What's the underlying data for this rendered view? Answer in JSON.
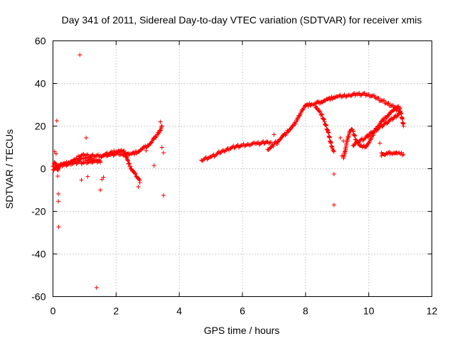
{
  "chart_data": {
    "type": "scatter",
    "title": "Day 341 of 2011, Sidereal Day-to-day VTEC variation (SDTVAR) for receiver xmis",
    "xlabel": "GPS time / hours",
    "ylabel": "SDTVAR / TECUs",
    "xlim": [
      0,
      12
    ],
    "ylim": [
      -60,
      60
    ],
    "xticks": [
      "0",
      "2",
      "4",
      "6",
      "8",
      "10",
      "12"
    ],
    "yticks": [
      "-60",
      "-40",
      "-20",
      "0",
      "20",
      "40",
      "60"
    ],
    "grid": true,
    "marker": "+",
    "color": "#ff0000",
    "series": [
      {
        "name": "SDTVAR",
        "tracks": [
          [
            [
              0.0,
              1.0
            ],
            [
              0.05,
              3.0
            ],
            [
              0.1,
              1.5
            ],
            [
              0.15,
              -0.5
            ],
            [
              0.2,
              1.2
            ],
            [
              0.3,
              2.0
            ],
            [
              0.4,
              2.5
            ],
            [
              0.5,
              3.0
            ],
            [
              0.6,
              3.5
            ],
            [
              0.7,
              4.0
            ],
            [
              0.8,
              4.5
            ],
            [
              0.9,
              5.0
            ],
            [
              1.0,
              4.8
            ],
            [
              1.2,
              4.5
            ],
            [
              1.3,
              4.0
            ],
            [
              1.4,
              3.8
            ],
            [
              1.5,
              3.0
            ]
          ],
          [
            [
              0.0,
              -0.5
            ],
            [
              0.1,
              0.5
            ],
            [
              0.2,
              1.5
            ],
            [
              0.4,
              2.0
            ],
            [
              0.6,
              2.5
            ],
            [
              0.8,
              3.0
            ],
            [
              1.0,
              3.0
            ],
            [
              1.2,
              3.2
            ],
            [
              1.5,
              3.5
            ]
          ],
          [
            [
              0.8,
              6.0
            ],
            [
              1.0,
              6.3
            ],
            [
              1.2,
              6.0
            ],
            [
              1.5,
              6.0
            ],
            [
              1.6,
              6.3
            ],
            [
              1.8,
              7.3
            ],
            [
              1.9,
              7.8
            ],
            [
              2.0,
              8.0
            ],
            [
              2.1,
              8.3
            ],
            [
              2.2,
              8.0
            ],
            [
              2.3,
              7.5
            ],
            [
              2.4,
              7.0
            ],
            [
              2.5,
              7.0
            ],
            [
              2.6,
              7.5
            ],
            [
              2.7,
              8.0
            ],
            [
              2.8,
              9.0
            ],
            [
              2.9,
              10.0
            ],
            [
              3.0,
              11.0
            ],
            [
              3.1,
              12.0
            ],
            [
              3.2,
              14.0
            ],
            [
              3.3,
              16.0
            ],
            [
              3.4,
              18.0
            ],
            [
              3.45,
              20.0
            ]
          ],
          [
            [
              1.5,
              6.0
            ],
            [
              1.8,
              6.5
            ],
            [
              2.0,
              7.0
            ],
            [
              2.2,
              6.8
            ],
            [
              2.4,
              6.5
            ]
          ],
          [
            [
              2.3,
              6.5
            ],
            [
              2.35,
              4.5
            ],
            [
              2.4,
              2.5
            ],
            [
              2.45,
              1.0
            ],
            [
              2.5,
              -0.5
            ],
            [
              2.55,
              -1.5
            ],
            [
              2.6,
              -2.5
            ],
            [
              2.65,
              -3.5
            ],
            [
              2.7,
              -4.5
            ],
            [
              2.75,
              -5.5
            ]
          ],
          [
            [
              4.7,
              4.0
            ],
            [
              5.0,
              5.5
            ],
            [
              5.2,
              7.0
            ],
            [
              5.4,
              8.5
            ],
            [
              5.6,
              9.5
            ],
            [
              5.8,
              10.5
            ],
            [
              6.0,
              11.0
            ],
            [
              6.2,
              11.3
            ],
            [
              6.4,
              11.7
            ],
            [
              6.6,
              12.0
            ],
            [
              6.8,
              12.5
            ],
            [
              6.9,
              12.5
            ]
          ],
          [
            [
              6.8,
              9.0
            ],
            [
              6.9,
              10.0
            ],
            [
              7.0,
              11.5
            ],
            [
              7.1,
              12.8
            ],
            [
              7.2,
              14.0
            ],
            [
              7.3,
              15.5
            ],
            [
              7.4,
              17.0
            ],
            [
              7.5,
              18.5
            ],
            [
              7.6,
              20.0
            ],
            [
              7.7,
              22.0
            ],
            [
              7.8,
              25.0
            ],
            [
              7.9,
              27.5
            ],
            [
              8.0,
              29.5
            ],
            [
              8.1,
              30.0
            ],
            [
              8.2,
              30.3
            ],
            [
              8.3,
              30.5
            ],
            [
              8.4,
              31.0
            ],
            [
              8.5,
              31.5
            ],
            [
              8.6,
              32.0
            ],
            [
              8.7,
              32.5
            ],
            [
              8.8,
              33.0
            ],
            [
              8.9,
              33.5
            ],
            [
              9.0,
              33.8
            ],
            [
              9.2,
              34.2
            ],
            [
              9.4,
              34.5
            ],
            [
              9.6,
              35.0
            ],
            [
              9.8,
              35.0
            ],
            [
              10.0,
              34.8
            ],
            [
              10.2,
              33.5
            ],
            [
              10.4,
              32.0
            ],
            [
              10.6,
              30.5
            ],
            [
              10.8,
              29.0
            ],
            [
              11.0,
              28.5
            ]
          ],
          [
            [
              8.3,
              29.5
            ],
            [
              8.4,
              27.5
            ],
            [
              8.5,
              25.5
            ],
            [
              8.6,
              22.0
            ],
            [
              8.7,
              18.0
            ],
            [
              8.75,
              15.0
            ],
            [
              8.8,
              12.0
            ],
            [
              8.85,
              9.5
            ],
            [
              8.9,
              8.0
            ]
          ],
          [
            [
              9.2,
              5.0
            ],
            [
              9.25,
              8.0
            ],
            [
              9.3,
              12.0
            ],
            [
              9.35,
              15.0
            ],
            [
              9.4,
              17.5
            ],
            [
              9.45,
              18.5
            ],
            [
              9.5,
              17.5
            ],
            [
              9.6,
              13.5
            ],
            [
              9.7,
              11.0
            ],
            [
              9.8,
              10.0
            ],
            [
              9.9,
              10.5
            ],
            [
              10.0,
              12.0
            ],
            [
              10.1,
              15.0
            ],
            [
              10.2,
              18.0
            ],
            [
              10.3,
              20.0
            ],
            [
              10.4,
              22.0
            ],
            [
              10.5,
              23.5
            ],
            [
              10.6,
              25.0
            ],
            [
              10.7,
              26.5
            ],
            [
              10.8,
              27.5
            ],
            [
              10.9,
              28.0
            ],
            [
              11.0,
              27.0
            ],
            [
              11.05,
              24.0
            ],
            [
              11.1,
              20.0
            ]
          ],
          [
            [
              9.5,
              11.0
            ],
            [
              9.7,
              13.0
            ],
            [
              9.9,
              14.5
            ],
            [
              10.1,
              17.0
            ],
            [
              10.3,
              19.0
            ],
            [
              10.5,
              21.0
            ],
            [
              10.7,
              23.0
            ],
            [
              10.9,
              25.0
            ],
            [
              11.0,
              26.5
            ]
          ],
          [
            [
              10.4,
              7.5
            ],
            [
              10.5,
              6.5
            ],
            [
              10.6,
              7.0
            ],
            [
              10.7,
              7.5
            ],
            [
              10.8,
              7.5
            ],
            [
              10.9,
              7.2
            ],
            [
              11.0,
              7.0
            ],
            [
              11.1,
              6.8
            ]
          ]
        ],
        "outliers": [
          [
            0.05,
            8.0
          ],
          [
            0.1,
            7.0
          ],
          [
            0.12,
            22.5
          ],
          [
            0.15,
            -3.5
          ],
          [
            0.17,
            -11.8
          ],
          [
            0.17,
            -15.3
          ],
          [
            0.18,
            -27.3
          ],
          [
            0.85,
            53.4
          ],
          [
            0.9,
            -5.3
          ],
          [
            1.05,
            14.5
          ],
          [
            1.1,
            -3.7
          ],
          [
            1.38,
            -55.8
          ],
          [
            1.5,
            -10.0
          ],
          [
            1.55,
            -5.0
          ],
          [
            1.6,
            -4.0
          ],
          [
            2.7,
            -8.5
          ],
          [
            2.75,
            -6.5
          ],
          [
            2.95,
            8.5
          ],
          [
            3.2,
            1.5
          ],
          [
            3.4,
            22.0
          ],
          [
            3.45,
            10.0
          ],
          [
            3.5,
            -12.5
          ],
          [
            3.5,
            7.5
          ],
          [
            7.0,
            16.0
          ],
          [
            7.1,
            11.5
          ],
          [
            8.9,
            -2.5
          ],
          [
            8.9,
            -17.0
          ],
          [
            9.1,
            14.5
          ],
          [
            9.15,
            6.0
          ],
          [
            9.2,
            13.0
          ],
          [
            10.35,
            12.0
          ],
          [
            10.4,
            6.0
          ]
        ]
      }
    ]
  }
}
